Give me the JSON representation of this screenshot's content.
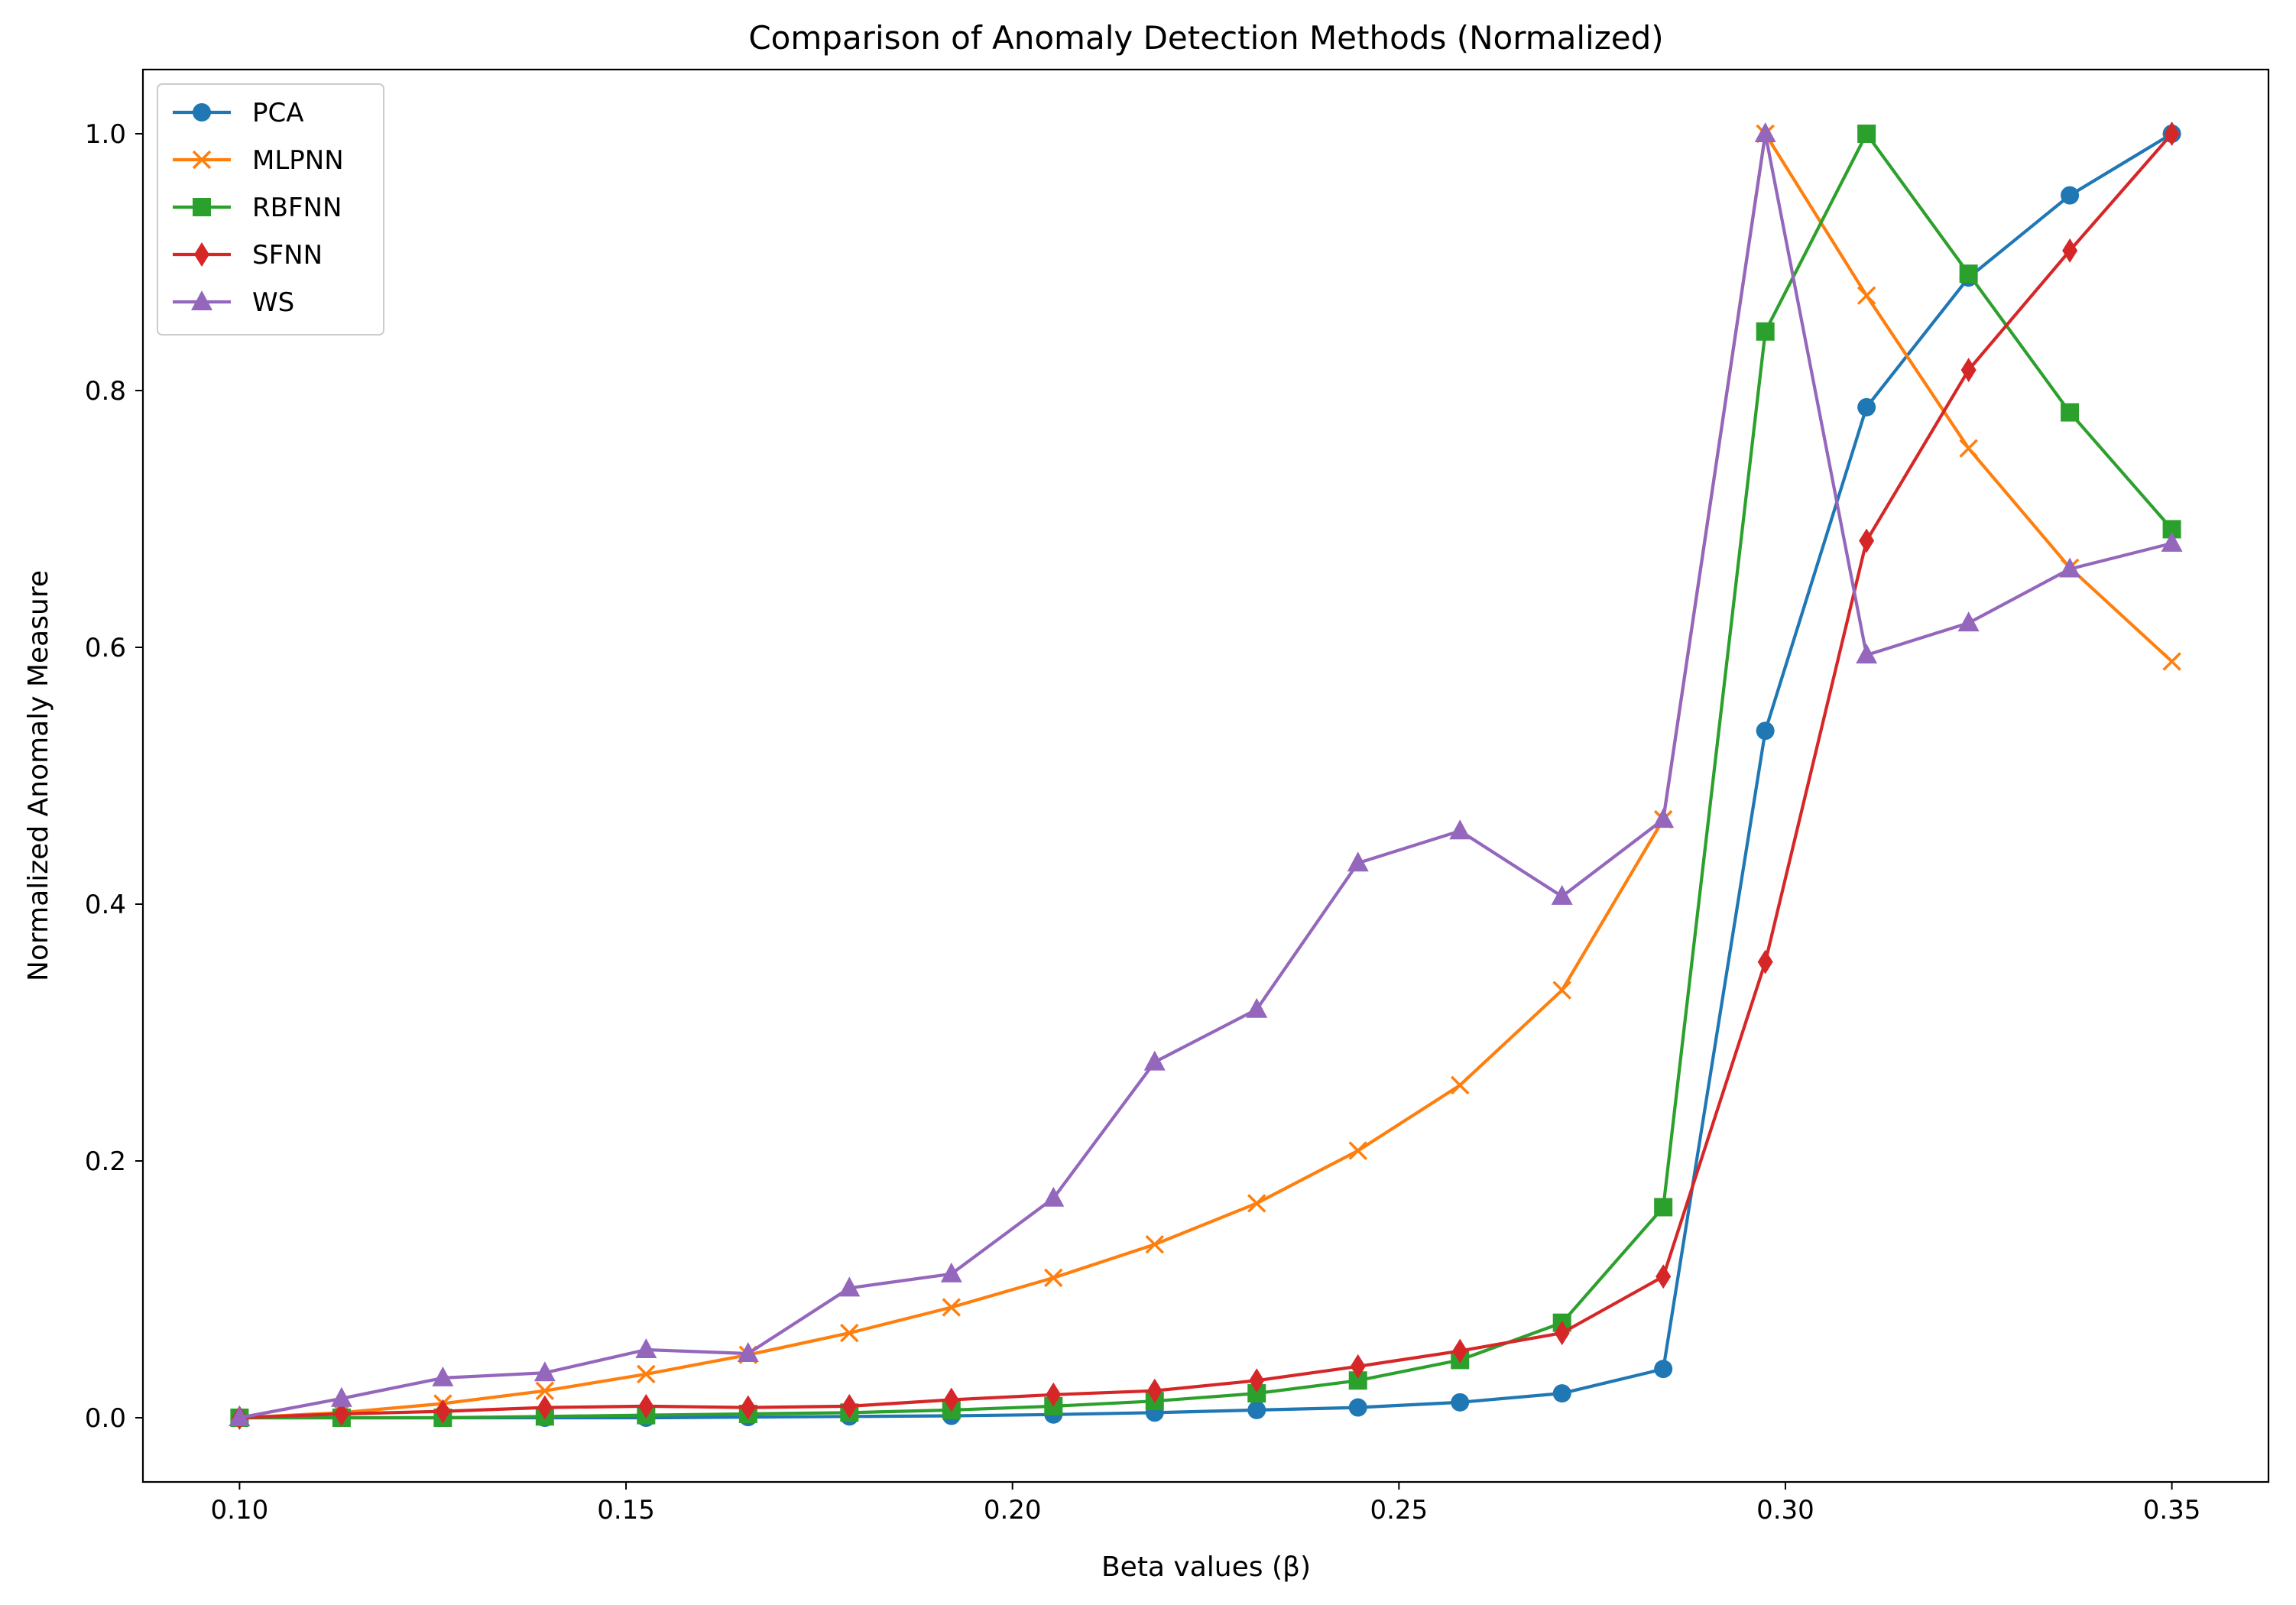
{
  "chart_data": {
    "type": "line",
    "title": "Comparison of Anomaly Detection Methods (Normalized)",
    "xlabel": "Beta values (β)",
    "ylabel": "Normalized Anomaly Measure",
    "xlim": [
      0.0875,
      0.3625
    ],
    "ylim": [
      -0.05,
      1.05
    ],
    "xticks": [
      0.1,
      0.15,
      0.2,
      0.25,
      0.3,
      0.35
    ],
    "xtick_labels": [
      "0.10",
      "0.15",
      "0.20",
      "0.25",
      "0.30",
      "0.35"
    ],
    "yticks": [
      0.0,
      0.2,
      0.4,
      0.6,
      0.8,
      1.0
    ],
    "ytick_labels": [
      "0.0",
      "0.2",
      "0.4",
      "0.6",
      "0.8",
      "1.0"
    ],
    "grid": false,
    "legend_position": "top-left",
    "x": [
      0.1,
      0.1132,
      0.1263,
      0.1395,
      0.1526,
      0.1658,
      0.1789,
      0.1921,
      0.2053,
      0.2184,
      0.2316,
      0.2447,
      0.2579,
      0.2711,
      0.2842,
      0.2974,
      0.3105,
      0.3237,
      0.3368,
      0.35
    ],
    "series": [
      {
        "name": "PCA",
        "color": "#1f77b4",
        "marker": "circle",
        "values": [
          0.0,
          0.0,
          0.0,
          0.0,
          0.0,
          0.0005,
          0.001,
          0.0015,
          0.0025,
          0.004,
          0.006,
          0.008,
          0.012,
          0.019,
          0.038,
          0.535,
          0.787,
          0.888,
          0.952,
          1.0
        ]
      },
      {
        "name": "MLPNN",
        "color": "#ff7f0e",
        "marker": "x",
        "values": [
          0.0,
          0.004,
          0.011,
          0.021,
          0.034,
          0.049,
          0.066,
          0.086,
          0.109,
          0.135,
          0.167,
          0.208,
          0.259,
          0.333,
          0.466,
          1.0,
          0.874,
          0.755,
          0.662,
          0.589
        ]
      },
      {
        "name": "RBFNN",
        "color": "#2ca02c",
        "marker": "square",
        "values": [
          0.0,
          0.0,
          0.0,
          0.001,
          0.002,
          0.003,
          0.004,
          0.006,
          0.009,
          0.013,
          0.019,
          0.029,
          0.045,
          0.074,
          0.164,
          0.846,
          1.0,
          0.891,
          0.783,
          0.692
        ]
      },
      {
        "name": "SFNN",
        "color": "#d62728",
        "marker": "diamond",
        "values": [
          0.0,
          0.003,
          0.005,
          0.008,
          0.009,
          0.008,
          0.009,
          0.014,
          0.018,
          0.021,
          0.029,
          0.04,
          0.052,
          0.066,
          0.11,
          0.355,
          0.683,
          0.816,
          0.909,
          1.0
        ]
      },
      {
        "name": "WS",
        "color": "#9467bd",
        "marker": "triangle",
        "values": [
          0.0,
          0.015,
          0.031,
          0.035,
          0.053,
          0.05,
          0.101,
          0.112,
          0.171,
          0.277,
          0.318,
          0.432,
          0.457,
          0.406,
          0.466,
          1.0,
          0.594,
          0.619,
          0.661,
          0.681
        ]
      }
    ]
  }
}
